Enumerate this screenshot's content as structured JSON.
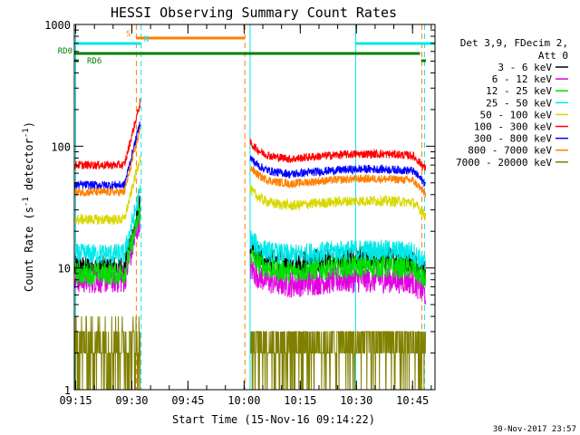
{
  "chart_data": {
    "type": "line",
    "title": "HESSI Observing Summary Count Rates",
    "xlabel": "Start Time (15-Nov-16 09:14:22)",
    "ylabel_main": "Count Rate (s",
    "ylabel_sup1": "-1",
    "ylabel_mid": " detector",
    "ylabel_sup2": "-1",
    "ylabel_end": ")",
    "y_scale": "log",
    "ylim": [
      1,
      1000
    ],
    "xlim_minutes": [
      -0.37,
      96
    ],
    "x_ticks": [
      {
        "label": "09:15",
        "min": 0
      },
      {
        "label": "09:30",
        "min": 15
      },
      {
        "label": "09:45",
        "min": 30
      },
      {
        "label": "10:00",
        "min": 45
      },
      {
        "label": "10:15",
        "min": 60
      },
      {
        "label": "10:30",
        "min": 75
      },
      {
        "label": "10:45",
        "min": 90
      }
    ],
    "y_ticks": [
      {
        "label": "1",
        "value": 1
      },
      {
        "label": "10",
        "value": 10
      },
      {
        "label": "100",
        "value": 100
      },
      {
        "label": "1000",
        "value": 1000
      }
    ],
    "legend_header": [
      "Det 3,9, FDecim 2,",
      "Att 0"
    ],
    "legend_position": "right",
    "data_gap_minutes": [
      17.3,
      46.6
    ],
    "series": [
      {
        "name": "3 - 6 keV",
        "color": "#000000",
        "pre": 10,
        "post": 11,
        "noise": 0.12
      },
      {
        "name": "6 - 12 keV",
        "color": "#e000e0",
        "pre": 8,
        "post": 7.5,
        "noise": 0.13
      },
      {
        "name": "12 - 25 keV",
        "color": "#00e000",
        "pre": 9,
        "post": 9.5,
        "noise": 0.11
      },
      {
        "name": "25 - 50 keV",
        "color": "#00e8e8",
        "pre": 13,
        "post": 13,
        "noise": 0.1
      },
      {
        "name": "50 - 100 keV",
        "color": "#d8d800",
        "pre": 25,
        "post": 33,
        "noise": 0.05
      },
      {
        "name": "100 - 300 keV",
        "color": "#ff0000",
        "pre": 70,
        "post": 80,
        "noise": 0.04
      },
      {
        "name": "300 - 800 keV",
        "color": "#0000ff",
        "pre": 48,
        "post": 60,
        "noise": 0.04
      },
      {
        "name": "800 - 7000 keV",
        "color": "#ff8000",
        "pre": 42,
        "post": 50,
        "noise": 0.04
      },
      {
        "name": "7000 - 20000 keV",
        "color": "#808000",
        "pre": 2.5,
        "post": 2.5,
        "noise": 0.35
      }
    ],
    "flags": [
      {
        "label": "S",
        "color": "#ff8000",
        "start": 16.2,
        "end": 45.2
      },
      {
        "label": "N",
        "color": "#00e8e8",
        "start": -0.37,
        "end": 17.5
      },
      {
        "label": "",
        "color": "#00e8e8",
        "start": 74.8,
        "end": 96
      },
      {
        "label": "RD0",
        "color": "#008000",
        "start": -0.37,
        "end": 92
      },
      {
        "label": "RD6",
        "color": "#008000",
        "start": -0.37,
        "end": 0.8
      }
    ],
    "vertical_markers": [
      {
        "min": 16.2,
        "color": "#ff8000",
        "style": "dash"
      },
      {
        "min": 17.5,
        "color": "#00e8e8",
        "style": "dash"
      },
      {
        "min": 45.2,
        "color": "#ff8000",
        "style": "dash"
      },
      {
        "min": 46.6,
        "color": "#00e8e8",
        "style": "solid"
      },
      {
        "min": 74.8,
        "color": "#00e8e8",
        "style": "solid"
      },
      {
        "min": 92.5,
        "color": "#ff8000",
        "style": "dash"
      },
      {
        "min": 93.2,
        "color": "#00e8e8",
        "style": "dash"
      },
      {
        "min": 0,
        "color": "#00e8e8",
        "style": "solid"
      }
    ]
  },
  "footer_timestamp": "30-Nov-2017 23:57"
}
